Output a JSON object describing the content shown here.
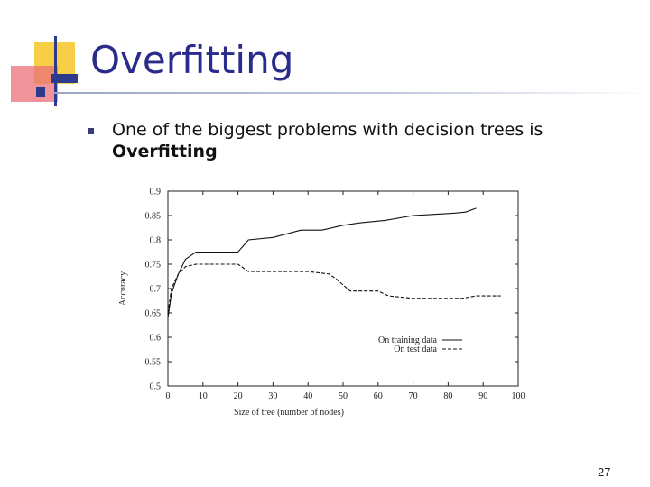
{
  "slide": {
    "title": "Overfitting",
    "bullet_text": "One of the biggest problems with decision trees is",
    "bullet_bold": "Overfitting",
    "page_number": "27"
  },
  "chart_data": {
    "type": "line",
    "title": "",
    "xlabel": "Size of tree (number of nodes)",
    "ylabel": "Accuracy",
    "xlim": [
      0,
      100
    ],
    "ylim": [
      0.5,
      0.9
    ],
    "x_ticks": [
      0,
      10,
      20,
      30,
      40,
      50,
      60,
      70,
      80,
      90,
      100
    ],
    "y_ticks": [
      0.5,
      0.55,
      0.6,
      0.65,
      0.7,
      0.75,
      0.8,
      0.85,
      0.9
    ],
    "y_tick_labels": [
      "0.5",
      "0.55",
      "0.6",
      "0.65",
      "0.7",
      "0.75",
      "0.8",
      "0.85",
      "0.9"
    ],
    "legend_position": "lower-right",
    "series": [
      {
        "name": "On training data",
        "style": "solid",
        "x": [
          0,
          1,
          3,
          5,
          8,
          20,
          23,
          30,
          38,
          44,
          50,
          55,
          62,
          70,
          75,
          82,
          85,
          88
        ],
        "y": [
          0.64,
          0.69,
          0.73,
          0.76,
          0.775,
          0.775,
          0.8,
          0.805,
          0.82,
          0.82,
          0.83,
          0.835,
          0.84,
          0.85,
          0.852,
          0.855,
          0.857,
          0.865
        ]
      },
      {
        "name": "On test data",
        "style": "dashed",
        "x": [
          0,
          1,
          3,
          5,
          8,
          20,
          23,
          30,
          40,
          46,
          48,
          52,
          60,
          63,
          70,
          84,
          88,
          95
        ],
        "y": [
          0.65,
          0.7,
          0.73,
          0.745,
          0.75,
          0.75,
          0.735,
          0.735,
          0.735,
          0.73,
          0.72,
          0.695,
          0.695,
          0.685,
          0.68,
          0.68,
          0.685,
          0.685
        ]
      }
    ]
  },
  "colors": {
    "title": "#2b2b8c",
    "logo_yellow": "#f6cf47",
    "logo_red": "#e9707a",
    "logo_blue": "#2e3a8c",
    "line": "#111111"
  }
}
